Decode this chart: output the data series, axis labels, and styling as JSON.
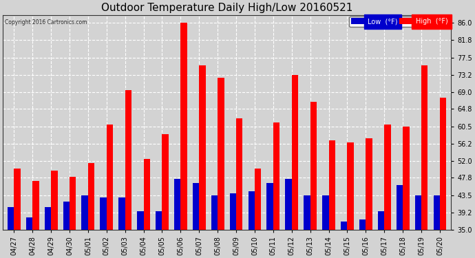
{
  "title": "Outdoor Temperature Daily High/Low 20160521",
  "copyright": "Copyright 2016 Cartronics.com",
  "dates": [
    "04/27",
    "04/28",
    "04/29",
    "04/30",
    "05/01",
    "05/02",
    "05/03",
    "05/04",
    "05/05",
    "05/06",
    "05/07",
    "05/08",
    "05/09",
    "05/10",
    "05/11",
    "05/12",
    "05/13",
    "05/14",
    "05/15",
    "05/16",
    "05/17",
    "05/18",
    "05/19",
    "05/20"
  ],
  "highs": [
    50.0,
    47.0,
    49.5,
    48.0,
    51.5,
    61.0,
    69.5,
    52.5,
    58.5,
    86.0,
    75.5,
    72.5,
    62.5,
    50.0,
    61.5,
    73.2,
    66.5,
    57.0,
    56.5,
    57.5,
    61.0,
    60.5,
    75.5,
    67.5
  ],
  "lows": [
    40.5,
    38.0,
    40.5,
    42.0,
    43.5,
    43.0,
    43.0,
    39.5,
    39.5,
    47.5,
    46.5,
    43.5,
    44.0,
    44.5,
    46.5,
    47.5,
    43.5,
    43.5,
    37.0,
    37.5,
    39.5,
    46.0,
    43.5,
    43.5
  ],
  "ylim": [
    35.0,
    88.0
  ],
  "yticks": [
    35.0,
    39.2,
    43.5,
    47.8,
    52.0,
    56.2,
    60.5,
    64.8,
    69.0,
    73.2,
    77.5,
    81.8,
    86.0
  ],
  "bar_width": 0.35,
  "high_color": "#ff0000",
  "low_color": "#0000cc",
  "bg_color": "#d3d3d3",
  "plot_bg_color": "#d3d3d3",
  "grid_color": "#ffffff",
  "title_fontsize": 11,
  "tick_fontsize": 7,
  "legend_high_label": "High  (°F)",
  "legend_low_label": "Low  (°F)",
  "base": 35.0
}
